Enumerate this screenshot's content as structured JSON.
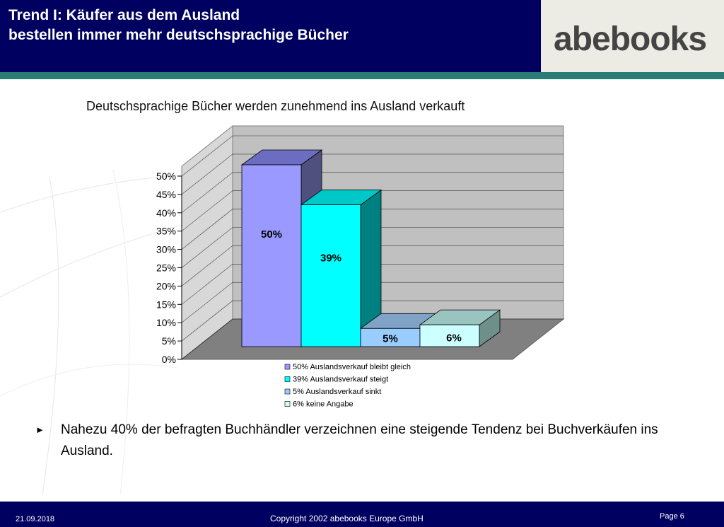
{
  "header": {
    "title_line1": "Trend I: Käufer aus dem Ausland",
    "title_line2": "bestellen immer mehr deutschsprachige Bücher",
    "logo": "abebooks"
  },
  "chart_title": "Deutschsprachige Bücher werden zunehmend ins Ausland verkauft",
  "chart_data": {
    "type": "bar",
    "title": "Deutschsprachige Bücher werden zunehmend ins Ausland verkauft",
    "categories": [
      "50% Auslandsverkauf bleibt gleich",
      "39% Auslandsverkauf steigt",
      "5% Auslandsverkauf sinkt",
      "6% keine Angabe"
    ],
    "values": [
      50,
      39,
      5,
      6
    ],
    "data_labels": [
      "50%",
      "39%",
      "5%",
      "6%"
    ],
    "yticks": [
      "0%",
      "5%",
      "10%",
      "15%",
      "20%",
      "25%",
      "30%",
      "35%",
      "40%",
      "45%",
      "50%"
    ],
    "ylim": [
      0,
      50
    ],
    "grid": true,
    "legend_position": "bottom",
    "colors": [
      "#9999ff",
      "#00ffff",
      "#99ccff",
      "#ccffff"
    ],
    "side_colors": [
      "#50507f",
      "#008080",
      "#6b8fb3",
      "#6f8f8a"
    ],
    "top_colors": [
      "#6c6cc0",
      "#00c8c8",
      "#7fa2c6",
      "#99c4c0"
    ]
  },
  "bullet": {
    "icon": "triangle-right-icon",
    "text": "Nahezu 40% der befragten Buchhändler verzeichnen eine steigende Tendenz bei Buchverkäufen ins Ausland."
  },
  "footer": {
    "date": "21.09.2018",
    "copyright": "Copyright 2002 abebooks Europe GmbH",
    "page": "Page 6"
  }
}
